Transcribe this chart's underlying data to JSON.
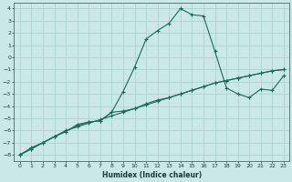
{
  "xlabel": "Humidex (Indice chaleur)",
  "background_color": "#c9e8e6",
  "line_color": "#1a6b5a",
  "grid_color": "#a8d0cc",
  "xlim": [
    -0.5,
    23.5
  ],
  "ylim": [
    -8.5,
    4.5
  ],
  "xticks": [
    0,
    1,
    2,
    3,
    4,
    5,
    6,
    7,
    8,
    9,
    10,
    11,
    12,
    13,
    14,
    15,
    16,
    17,
    18,
    19,
    20,
    21,
    22,
    23
  ],
  "yticks": [
    4,
    3,
    2,
    1,
    0,
    -1,
    -2,
    -3,
    -4,
    -5,
    -6,
    -7,
    -8
  ],
  "line1_x": [
    0,
    1,
    2,
    3,
    4,
    5,
    6,
    7,
    8,
    9,
    10,
    11,
    12,
    13,
    14,
    15,
    16,
    17,
    18,
    19,
    20,
    21,
    22,
    23
  ],
  "line1_y": [
    -8.0,
    -7.5,
    -7.0,
    -6.5,
    -6.0,
    -5.7,
    -5.4,
    -5.1,
    -4.8,
    -4.5,
    -4.2,
    -3.9,
    -3.6,
    -3.3,
    -3.0,
    -2.7,
    -2.4,
    -2.1,
    -1.9,
    -1.7,
    -1.5,
    -1.3,
    -1.1,
    -1.0
  ],
  "line2_x": [
    0,
    1,
    2,
    3,
    4,
    5,
    6,
    7,
    8,
    9,
    10,
    11,
    12,
    13,
    14,
    15,
    16,
    17,
    18,
    19,
    20,
    21,
    22,
    23
  ],
  "line2_y": [
    -8.0,
    -7.4,
    -7.0,
    -6.5,
    -6.1,
    -5.5,
    -5.3,
    -5.2,
    -4.5,
    -4.4,
    -4.2,
    -3.8,
    -3.5,
    -3.3,
    -3.0,
    -2.7,
    -2.4,
    -2.1,
    -1.9,
    -1.7,
    -1.5,
    -1.3,
    -1.1,
    -1.0
  ],
  "line3_x": [
    0,
    1,
    2,
    3,
    5,
    6,
    7,
    8,
    9,
    10,
    11,
    12,
    13,
    14,
    15,
    16,
    17,
    18,
    19,
    20,
    21,
    22,
    23
  ],
  "line3_y": [
    -8.0,
    -7.5,
    -7.0,
    -6.5,
    -5.6,
    -5.3,
    -5.2,
    -4.5,
    -2.8,
    -0.8,
    1.5,
    2.2,
    2.8,
    4.0,
    3.5,
    3.4,
    0.5,
    -2.5,
    -3.0,
    -3.3,
    -2.6,
    -2.7,
    -1.5
  ]
}
